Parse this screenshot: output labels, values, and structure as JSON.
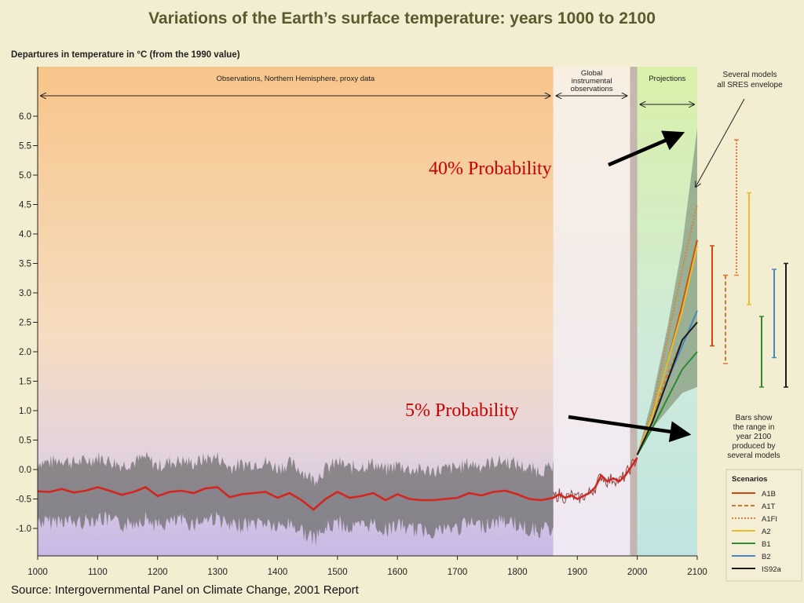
{
  "title": "Variations of the Earth’s surface temperature: years 1000 to 2100",
  "source": "Source:  Intergovernmental Panel on Climate Change, 2001 Report",
  "chart_data": {
    "type": "line",
    "title": "Variations of the Earth’s surface temperature: years 1000 to 2100",
    "ylabel": "Departures in temperature in °C (from the 1990 value)",
    "xlabel": "",
    "xlim": [
      1000,
      2100
    ],
    "ylim": [
      -1.2,
      6.2
    ],
    "x_ticks": [
      "1000",
      "1100",
      "1200",
      "1300",
      "1400",
      "1500",
      "1600",
      "1700",
      "1800",
      "1900",
      "2000",
      "2100"
    ],
    "y_ticks": [
      "-1.0",
      "-0.5",
      "0.0",
      "0.5",
      "1.0",
      "1.5",
      "2.0",
      "2.5",
      "3.0",
      "3.5",
      "4.0",
      "4.5",
      "5.0",
      "5.5",
      "6.0"
    ],
    "periods": [
      {
        "label": "Observations, Northern Hemisphere, proxy data",
        "from": 1000,
        "to": 1860,
        "color": "#f6c98e"
      },
      {
        "label": "Global instrumental observations",
        "from": 1860,
        "to": 2000,
        "color": "#f7ecd6"
      },
      {
        "label": "Projections",
        "from": 2000,
        "to": 2100,
        "color": "#d4ecb8"
      }
    ],
    "observed_series": {
      "name": "",
      "color": "#d3261e",
      "x": [
        1000,
        1020,
        1040,
        1060,
        1080,
        1100,
        1120,
        1140,
        1160,
        1180,
        1200,
        1220,
        1240,
        1260,
        1280,
        1300,
        1320,
        1340,
        1360,
        1380,
        1400,
        1420,
        1440,
        1460,
        1480,
        1500,
        1520,
        1540,
        1560,
        1580,
        1600,
        1620,
        1640,
        1660,
        1680,
        1700,
        1720,
        1740,
        1760,
        1780,
        1800,
        1820,
        1840,
        1860,
        1870,
        1880,
        1890,
        1900,
        1910,
        1920,
        1930,
        1940,
        1950,
        1960,
        1970,
        1980,
        1990,
        2000
      ],
      "y": [
        -0.37,
        -0.38,
        -0.33,
        -0.39,
        -0.36,
        -0.3,
        -0.36,
        -0.43,
        -0.38,
        -0.3,
        -0.45,
        -0.38,
        -0.36,
        -0.4,
        -0.32,
        -0.3,
        -0.47,
        -0.42,
        -0.4,
        -0.38,
        -0.48,
        -0.4,
        -0.52,
        -0.68,
        -0.5,
        -0.38,
        -0.48,
        -0.45,
        -0.4,
        -0.52,
        -0.42,
        -0.5,
        -0.52,
        -0.52,
        -0.5,
        -0.48,
        -0.4,
        -0.44,
        -0.38,
        -0.36,
        -0.42,
        -0.5,
        -0.52,
        -0.48,
        -0.42,
        -0.48,
        -0.44,
        -0.5,
        -0.45,
        -0.4,
        -0.3,
        -0.1,
        -0.2,
        -0.15,
        -0.2,
        -0.1,
        0.05,
        0.2
      ]
    },
    "projection_envelope": {
      "x": [
        2000,
        2025,
        2050,
        2075,
        2100
      ],
      "upper": [
        0.25,
        1.2,
        2.4,
        3.8,
        5.8
      ],
      "lower": [
        0.25,
        0.7,
        1.0,
        1.3,
        1.4
      ],
      "color": "#8aa284"
    },
    "scenarios": [
      {
        "name": "A1B",
        "color": "#cc4a12",
        "dash": "solid",
        "values_2000_to_2100": [
          0.25,
          0.9,
          1.8,
          2.8,
          3.9
        ],
        "range_2100": [
          2.1,
          3.8
        ]
      },
      {
        "name": "A1T",
        "color": "#d9762b",
        "dash": "dashed",
        "values_2000_to_2100": [
          0.25,
          0.9,
          1.6,
          2.2,
          2.5
        ],
        "range_2100": [
          1.8,
          3.3
        ]
      },
      {
        "name": "A1FI",
        "color": "#dd7f3a",
        "dash": "dotted",
        "values_2000_to_2100": [
          0.25,
          1.0,
          2.2,
          3.4,
          4.5
        ],
        "range_2100": [
          3.3,
          5.6
        ]
      },
      {
        "name": "A2",
        "color": "#e6c02a",
        "dash": "solid",
        "values_2000_to_2100": [
          0.25,
          0.9,
          1.8,
          2.7,
          3.8
        ],
        "range_2100": [
          2.8,
          4.7
        ]
      },
      {
        "name": "B1",
        "color": "#2e8a2e",
        "dash": "solid",
        "values_2000_to_2100": [
          0.25,
          0.7,
          1.2,
          1.7,
          2.0
        ],
        "range_2100": [
          1.4,
          2.6
        ]
      },
      {
        "name": "B2",
        "color": "#4a86bf",
        "dash": "solid",
        "values_2000_to_2100": [
          0.25,
          0.8,
          1.5,
          2.1,
          2.7
        ],
        "range_2100": [
          1.9,
          3.4
        ]
      },
      {
        "name": "IS92a",
        "color": "#1a1a1a",
        "dash": "solid",
        "values_2000_to_2100": [
          0.25,
          0.8,
          1.5,
          2.2,
          2.5
        ],
        "range_2100": [
          1.4,
          3.5
        ]
      }
    ],
    "scenarios_title": "Scenarios",
    "annotations": {
      "envelope_note": [
        "Several models",
        "all SRES envelope"
      ],
      "bars_note": [
        "Bars show",
        "the range in",
        "year 2100",
        "produced by",
        "several models"
      ],
      "high_label": "40% Probability",
      "low_label": "5% Probability"
    }
  }
}
